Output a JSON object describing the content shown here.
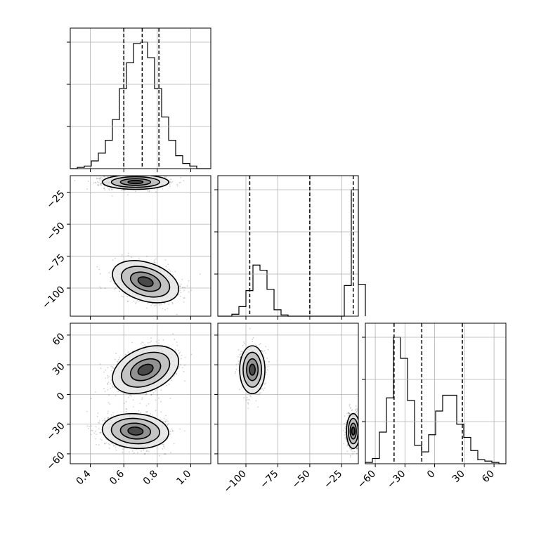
{
  "chart_data": {
    "type": "corner",
    "grid": true,
    "parameters": [
      {
        "ticks": [
          0.4,
          0.6,
          0.8,
          1.0
        ],
        "tick_labels": [
          "0.4",
          "0.6",
          "0.8",
          "1.0"
        ],
        "range": [
          0.28,
          1.12
        ],
        "quantiles": [
          0.6,
          0.71,
          0.81
        ],
        "hist": {
          "edges_start": 0.28,
          "bin_width": 0.042,
          "counts": [
            0,
            1,
            2,
            6,
            12,
            22,
            38,
            62,
            82,
            97,
            98,
            86,
            62,
            40,
            22,
            10,
            4,
            2,
            0,
            0
          ]
        }
      },
      {
        "ticks": [
          -100,
          -75,
          -50,
          -25
        ],
        "tick_labels": [
          "−100",
          "−75",
          "−50",
          "−25"
        ],
        "range": [
          -122,
          -12
        ],
        "quantiles": [
          -97,
          -50,
          -16
        ],
        "hist": {
          "edges_start": -122,
          "bin_width": 5.5,
          "counts": [
            0,
            0,
            3,
            15,
            40,
            80,
            72,
            42,
            10,
            2,
            0,
            0,
            0,
            0,
            0,
            0,
            0,
            0,
            48,
            198,
            50
          ]
        }
      },
      {
        "ticks": [
          -60,
          -30,
          0,
          30,
          60
        ],
        "tick_labels": [
          "−60",
          "−30",
          "0",
          "30",
          "60"
        ],
        "range": [
          -70,
          72
        ],
        "quantiles": [
          -41,
          -13,
          28
        ],
        "hist": {
          "edges_start": -70,
          "bin_width": 7.1,
          "counts": [
            1,
            4,
            24,
            50,
            96,
            80,
            48,
            14,
            9,
            22,
            40,
            52,
            52,
            30,
            20,
            10,
            3,
            2,
            1,
            0
          ]
        }
      }
    ],
    "blobs": {
      "p1_p0": [
        {
          "mx": 0.67,
          "my": -17,
          "sx": 0.09,
          "sy": 2.6,
          "rho": 0.0,
          "n": 1400
        },
        {
          "mx": 0.73,
          "my": -95,
          "sx": 0.09,
          "sy": 7.5,
          "rho": -0.35,
          "n": 1100
        }
      ],
      "p2_p0": [
        {
          "mx": 0.73,
          "my": 25,
          "sx": 0.09,
          "sy": 11,
          "rho": 0.35,
          "n": 1200
        },
        {
          "mx": 0.67,
          "my": -37,
          "sx": 0.09,
          "sy": 8,
          "rho": -0.1,
          "n": 1400
        }
      ],
      "p2_p1": [
        {
          "mx": -95,
          "my": 25,
          "sx": 4.5,
          "sy": 11,
          "rho": 0.0,
          "n": 1100
        },
        {
          "mx": -16,
          "my": -37,
          "sx": 2.4,
          "sy": 8,
          "rho": 0.0,
          "n": 1400
        }
      ]
    }
  }
}
